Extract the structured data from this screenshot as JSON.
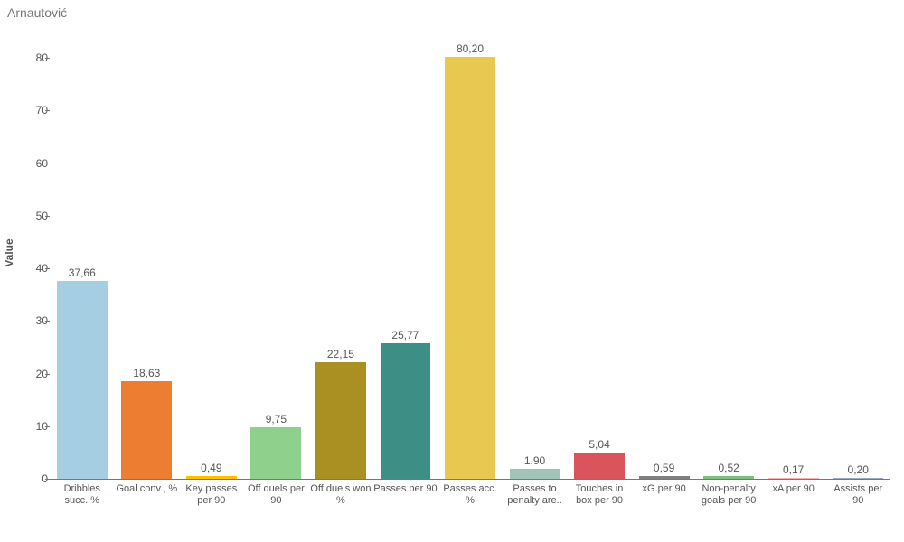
{
  "title": "Arnautović",
  "ylabel": "Value",
  "chart": {
    "type": "bar",
    "ylim_max": 85,
    "ylim_min": 0,
    "ytick_step": 10,
    "background_color": "#ffffff",
    "axis_color": "#777777",
    "label_color": "#555555",
    "label_fontsize": 12,
    "xlabel_fontsize": 11,
    "bar_width_ratio": 0.78,
    "categories": [
      "Dribbles succ. %",
      "Goal conv., %",
      "Key passes per 90",
      "Off duels per 90",
      "Off duels won %",
      "Passes per 90",
      "Passes acc. %",
      "Passes to penalty are..",
      "Touches in box per 90",
      "xG per 90",
      "Non-penalty goals per 90",
      "xA per 90",
      "Assists per 90"
    ],
    "values": [
      37.66,
      18.63,
      0.49,
      9.75,
      22.15,
      25.77,
      80.2,
      1.9,
      5.04,
      0.59,
      0.52,
      0.17,
      0.2
    ],
    "display_values": [
      "37,66",
      "18,63",
      "0,49",
      "9,75",
      "22,15",
      "25,77",
      "80,20",
      "1,90",
      "5,04",
      "0,59",
      "0,52",
      "0,17",
      "0,20"
    ],
    "bar_colors": [
      "#a6cee3",
      "#ed7d31",
      "#ffc000",
      "#8fd18c",
      "#aa8f22",
      "#3d8f86",
      "#e8c850",
      "#a0c4b8",
      "#d9555b",
      "#808080",
      "#7fbf7f",
      "#f4b0b0",
      "#9aa8c8"
    ]
  }
}
